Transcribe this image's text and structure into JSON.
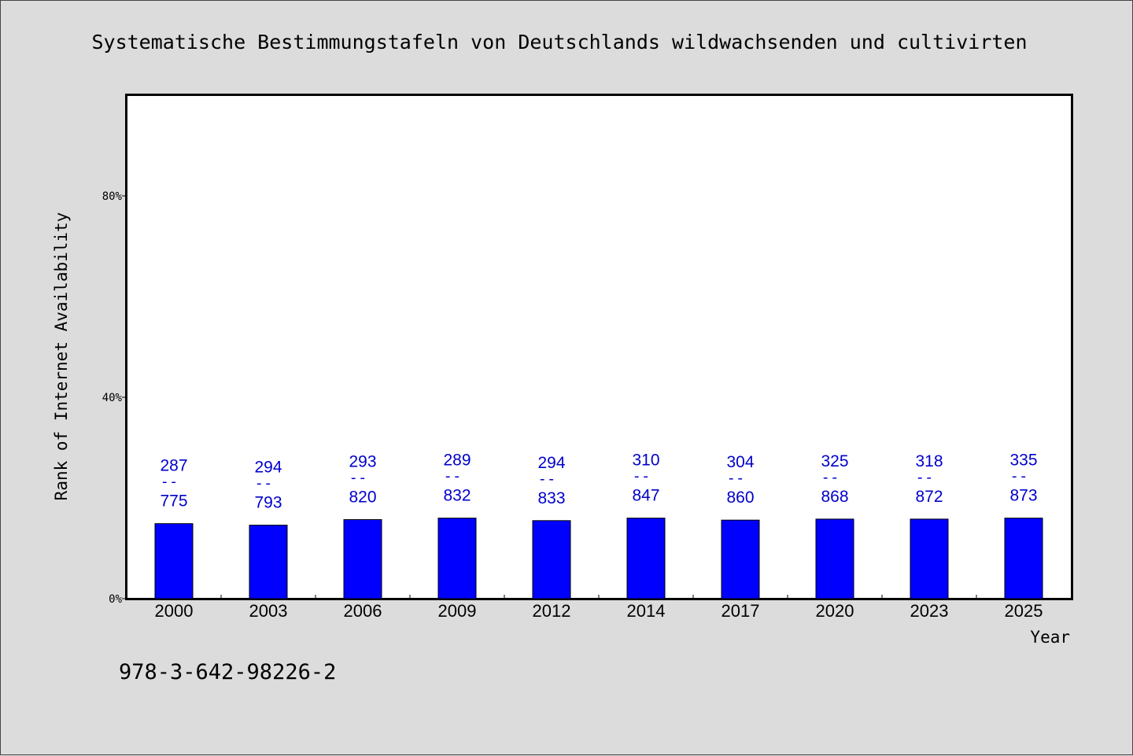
{
  "chart_data": {
    "type": "bar",
    "title": "Systematische Bestimmungstafeln von Deutschlands wildwachsenden und cultivirten",
    "xlabel": "Year",
    "ylabel": "Rank of Internet Availability",
    "footnote": "978-3-642-98226-2",
    "ylim": [
      0,
      100
    ],
    "yticks": [
      0,
      40,
      80
    ],
    "ytick_labels": [
      "0%",
      "40%",
      "80%"
    ],
    "grid": false,
    "bar_color": "#0000ff",
    "label_color": "#0000cc",
    "categories": [
      "2000",
      "2003",
      "2006",
      "2009",
      "2012",
      "2014",
      "2017",
      "2020",
      "2023",
      "2025"
    ],
    "values": [
      14.9,
      14.6,
      15.7,
      16.0,
      15.5,
      16.0,
      15.6,
      15.8,
      15.8,
      16.0
    ],
    "label_top": [
      "287",
      "294",
      "293",
      "289",
      "294",
      "310",
      "304",
      "325",
      "318",
      "335"
    ],
    "label_separator": "--",
    "label_bottom": [
      "775",
      "793",
      "820",
      "832",
      "833",
      "847",
      "860",
      "868",
      "872",
      "873"
    ]
  }
}
